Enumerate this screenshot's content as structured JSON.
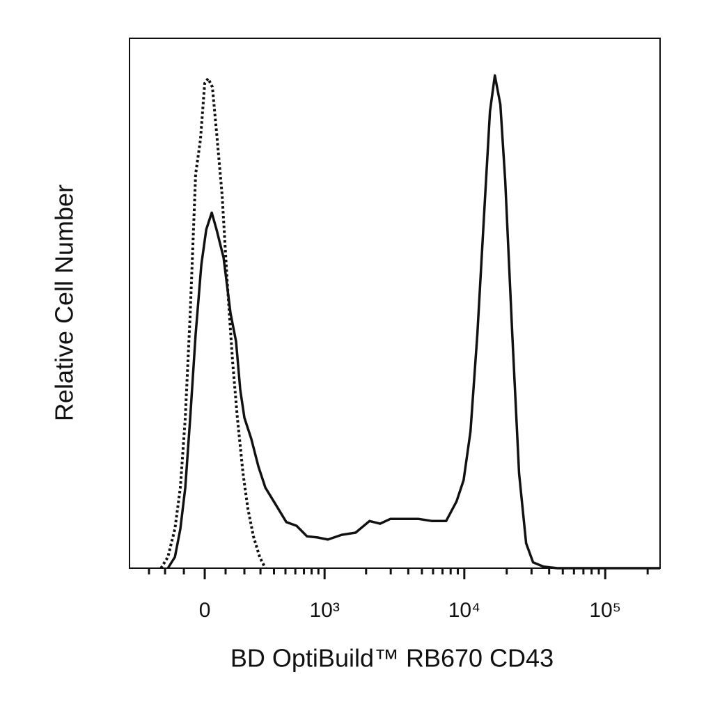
{
  "chart_data": {
    "type": "histogram-overlay",
    "xlabel": "BD OptiBuild™ RB670 CD43",
    "ylabel": "Relative Cell Number",
    "xscale": "biexponential",
    "xlim": [
      -450,
      245000
    ],
    "ylim": [
      0,
      100
    ],
    "xticks": [
      0,
      {
        "value": 1000,
        "label": "10³"
      },
      {
        "value": 10000,
        "label": "10⁴"
      },
      {
        "value": 100000,
        "label": "10⁵"
      }
    ],
    "xminorticks": [
      -300,
      -200,
      -100,
      100,
      200,
      300,
      400,
      500,
      600,
      700,
      800,
      900,
      2000,
      3000,
      4000,
      5000,
      6000,
      7000,
      8000,
      9000,
      20000,
      30000,
      40000,
      50000,
      60000,
      70000,
      80000,
      90000,
      200000
    ],
    "series": [
      {
        "color": "#111111",
        "dash": "dotted",
        "x": [
          -224,
          -184,
          -146,
          -118,
          -93,
          -69,
          -43,
          -20,
          0,
          16,
          36,
          56,
          83,
          107,
          136,
          161,
          192,
          220,
          254,
          295,
          334
        ],
        "values": [
          0,
          2.1,
          7.4,
          15.2,
          28.4,
          48.1,
          74.4,
          80.9,
          91.5,
          92.4,
          90.8,
          82.3,
          70.4,
          54.7,
          38.9,
          28.4,
          17.9,
          11.3,
          6.0,
          2.1,
          0
        ]
      },
      {
        "color": "#111111",
        "dash": "solid",
        "x": [
          -184,
          -146,
          -118,
          -93,
          -69,
          -43,
          -16,
          7,
          33,
          56,
          90,
          125,
          154,
          177,
          200,
          241,
          286,
          334,
          414,
          508,
          613,
          738,
          885,
          1057,
          1333,
          1682,
          2117,
          2517,
          2987,
          3750,
          4712,
          5916,
          7430,
          8813,
          9878,
          11059,
          12384,
          13882,
          15206,
          16474,
          18029,
          19526,
          21888,
          24480,
          27446,
          30758,
          36432,
          45734,
          245000
        ],
        "values": [
          0,
          2.1,
          7.4,
          15.2,
          28.4,
          44.2,
          57.3,
          63.9,
          67.1,
          63.9,
          58.6,
          48.1,
          42.8,
          33.6,
          28.4,
          24.4,
          19.2,
          15.2,
          12.0,
          8.7,
          8.0,
          6.0,
          5.8,
          5.4,
          6.3,
          6.7,
          8.9,
          8.4,
          9.3,
          9.3,
          9.3,
          8.9,
          8.9,
          12.6,
          16.6,
          25.8,
          44.2,
          67.8,
          86.2,
          93.0,
          87.5,
          73.1,
          44.2,
          17.9,
          4.7,
          1.1,
          0.3,
          0,
          0
        ]
      }
    ]
  }
}
